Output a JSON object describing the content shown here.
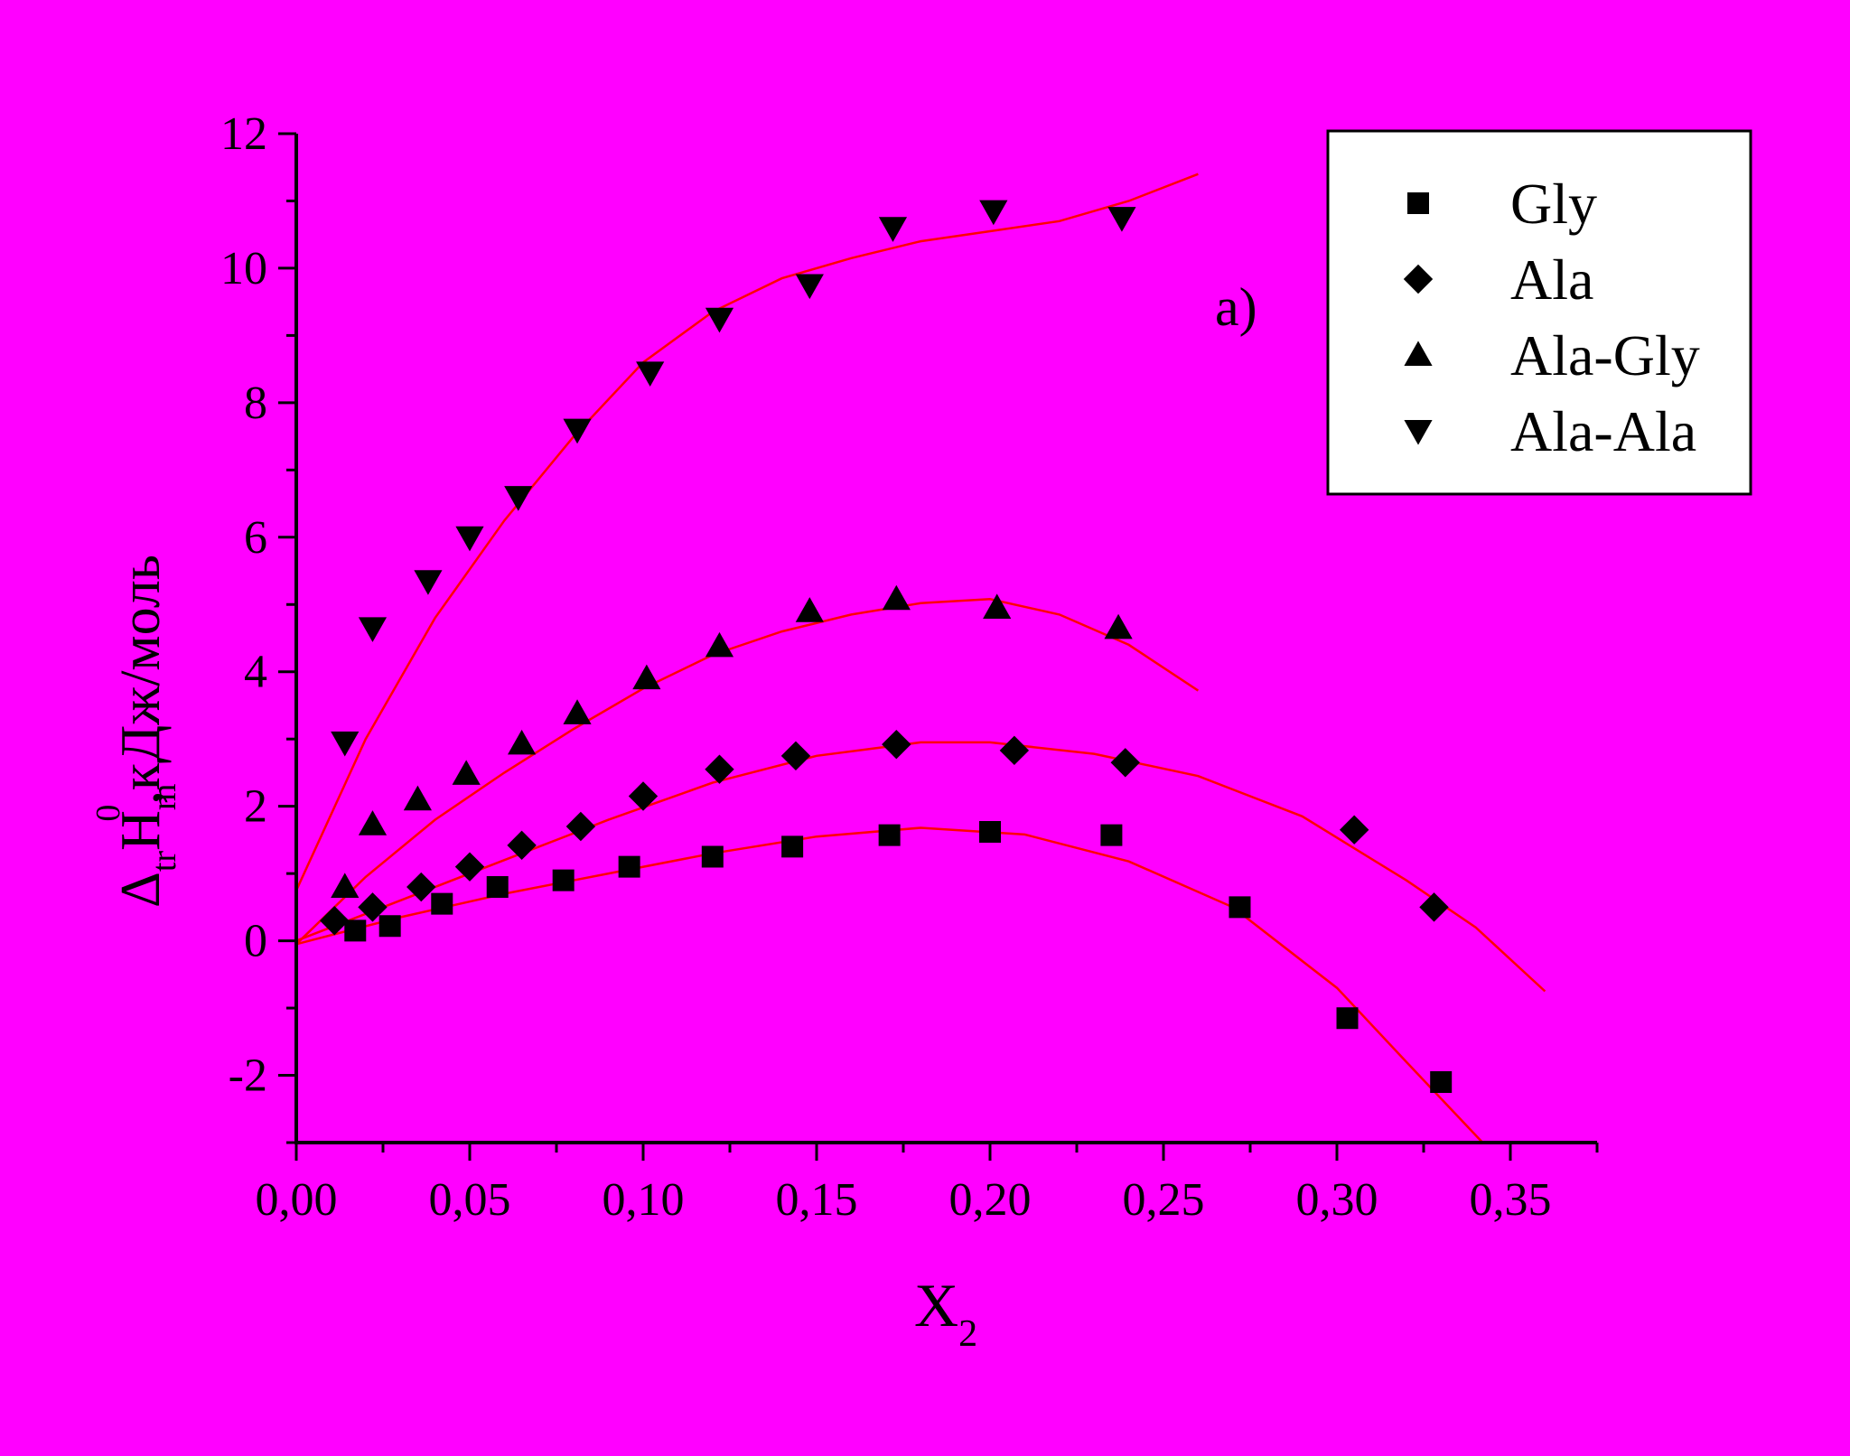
{
  "colors": {
    "background": "#ff00ff",
    "fit_line": "#ff0000",
    "markers": "#000000",
    "legend_bg": "#ffffff"
  },
  "chart_data": {
    "type": "scatter",
    "annotation": "a)",
    "xlabel": {
      "main": "X",
      "sub": "2"
    },
    "ylabel": {
      "prefix": "Δ",
      "sub1": "tr",
      "main": "H",
      "sub2": "m",
      "sup": "0",
      "suffix": ",кДж/моль"
    },
    "xlim": [
      0,
      0.375
    ],
    "ylim": [
      -3,
      12
    ],
    "xticks": [
      {
        "v": 0,
        "label": "0,00"
      },
      {
        "v": 0.05,
        "label": "0,05"
      },
      {
        "v": 0.1,
        "label": "0,10"
      },
      {
        "v": 0.15,
        "label": "0,15"
      },
      {
        "v": 0.2,
        "label": "0,20"
      },
      {
        "v": 0.25,
        "label": "0,25"
      },
      {
        "v": 0.3,
        "label": "0,30"
      },
      {
        "v": 0.35,
        "label": "0,35"
      }
    ],
    "yticks": [
      {
        "v": -2,
        "label": "-2"
      },
      {
        "v": 0,
        "label": "0"
      },
      {
        "v": 2,
        "label": "2"
      },
      {
        "v": 4,
        "label": "4"
      },
      {
        "v": 6,
        "label": "6"
      },
      {
        "v": 8,
        "label": "8"
      },
      {
        "v": 10,
        "label": "10"
      },
      {
        "v": 12,
        "label": "12"
      }
    ],
    "legend_position": "top-right",
    "series": [
      {
        "name": "Gly",
        "marker": "square",
        "points": [
          [
            0.017,
            0.15
          ],
          [
            0.027,
            0.22
          ],
          [
            0.042,
            0.55
          ],
          [
            0.058,
            0.8
          ],
          [
            0.077,
            0.9
          ],
          [
            0.096,
            1.1
          ],
          [
            0.12,
            1.25
          ],
          [
            0.143,
            1.4
          ],
          [
            0.171,
            1.57
          ],
          [
            0.2,
            1.62
          ],
          [
            0.235,
            1.57
          ],
          [
            0.272,
            0.5
          ],
          [
            0.303,
            -1.15
          ],
          [
            0.33,
            -2.1
          ]
        ],
        "fit": [
          [
            0,
            -0.05
          ],
          [
            0.03,
            0.35
          ],
          [
            0.06,
            0.7
          ],
          [
            0.09,
            1.0
          ],
          [
            0.12,
            1.3
          ],
          [
            0.15,
            1.55
          ],
          [
            0.18,
            1.68
          ],
          [
            0.21,
            1.58
          ],
          [
            0.24,
            1.18
          ],
          [
            0.27,
            0.5
          ],
          [
            0.3,
            -0.7
          ],
          [
            0.32,
            -1.8
          ],
          [
            0.342,
            -3.0
          ]
        ]
      },
      {
        "name": "Ala",
        "marker": "diamond",
        "points": [
          [
            0.011,
            0.3
          ],
          [
            0.022,
            0.5
          ],
          [
            0.036,
            0.8
          ],
          [
            0.05,
            1.1
          ],
          [
            0.065,
            1.42
          ],
          [
            0.082,
            1.7
          ],
          [
            0.1,
            2.15
          ],
          [
            0.122,
            2.55
          ],
          [
            0.144,
            2.75
          ],
          [
            0.173,
            2.92
          ],
          [
            0.207,
            2.83
          ],
          [
            0.239,
            2.65
          ],
          [
            0.305,
            1.65
          ],
          [
            0.328,
            0.5
          ]
        ],
        "fit": [
          [
            0,
            0.0
          ],
          [
            0.03,
            0.6
          ],
          [
            0.06,
            1.2
          ],
          [
            0.09,
            1.8
          ],
          [
            0.12,
            2.35
          ],
          [
            0.15,
            2.75
          ],
          [
            0.18,
            2.95
          ],
          [
            0.2,
            2.95
          ],
          [
            0.23,
            2.78
          ],
          [
            0.26,
            2.45
          ],
          [
            0.29,
            1.85
          ],
          [
            0.32,
            0.9
          ],
          [
            0.34,
            0.2
          ],
          [
            0.36,
            -0.75
          ]
        ]
      },
      {
        "name": "Ala-Gly",
        "marker": "triangle-up",
        "points": [
          [
            0.014,
            0.8
          ],
          [
            0.022,
            1.73
          ],
          [
            0.035,
            2.1
          ],
          [
            0.049,
            2.48
          ],
          [
            0.065,
            2.93
          ],
          [
            0.081,
            3.38
          ],
          [
            0.101,
            3.9
          ],
          [
            0.122,
            4.38
          ],
          [
            0.148,
            4.9
          ],
          [
            0.173,
            5.08
          ],
          [
            0.202,
            4.95
          ],
          [
            0.237,
            4.65
          ]
        ],
        "fit": [
          [
            0,
            -0.05
          ],
          [
            0.02,
            0.95
          ],
          [
            0.04,
            1.8
          ],
          [
            0.06,
            2.5
          ],
          [
            0.08,
            3.15
          ],
          [
            0.1,
            3.75
          ],
          [
            0.12,
            4.25
          ],
          [
            0.14,
            4.6
          ],
          [
            0.16,
            4.85
          ],
          [
            0.18,
            5.02
          ],
          [
            0.2,
            5.08
          ],
          [
            0.22,
            4.85
          ],
          [
            0.24,
            4.4
          ],
          [
            0.26,
            3.72
          ]
        ]
      },
      {
        "name": "Ala-Ala",
        "marker": "triangle-down",
        "points": [
          [
            0.014,
            2.95
          ],
          [
            0.022,
            4.65
          ],
          [
            0.038,
            5.35
          ],
          [
            0.05,
            6.0
          ],
          [
            0.064,
            6.6
          ],
          [
            0.081,
            7.6
          ],
          [
            0.102,
            8.45
          ],
          [
            0.122,
            9.25
          ],
          [
            0.148,
            9.75
          ],
          [
            0.172,
            10.6
          ],
          [
            0.201,
            10.85
          ],
          [
            0.238,
            10.75
          ]
        ],
        "fit": [
          [
            0,
            0.75
          ],
          [
            0.02,
            3.0
          ],
          [
            0.04,
            4.8
          ],
          [
            0.06,
            6.25
          ],
          [
            0.08,
            7.5
          ],
          [
            0.1,
            8.6
          ],
          [
            0.12,
            9.35
          ],
          [
            0.14,
            9.85
          ],
          [
            0.16,
            10.15
          ],
          [
            0.18,
            10.4
          ],
          [
            0.2,
            10.55
          ],
          [
            0.22,
            10.7
          ],
          [
            0.24,
            11.0
          ],
          [
            0.26,
            11.4
          ]
        ]
      }
    ]
  }
}
